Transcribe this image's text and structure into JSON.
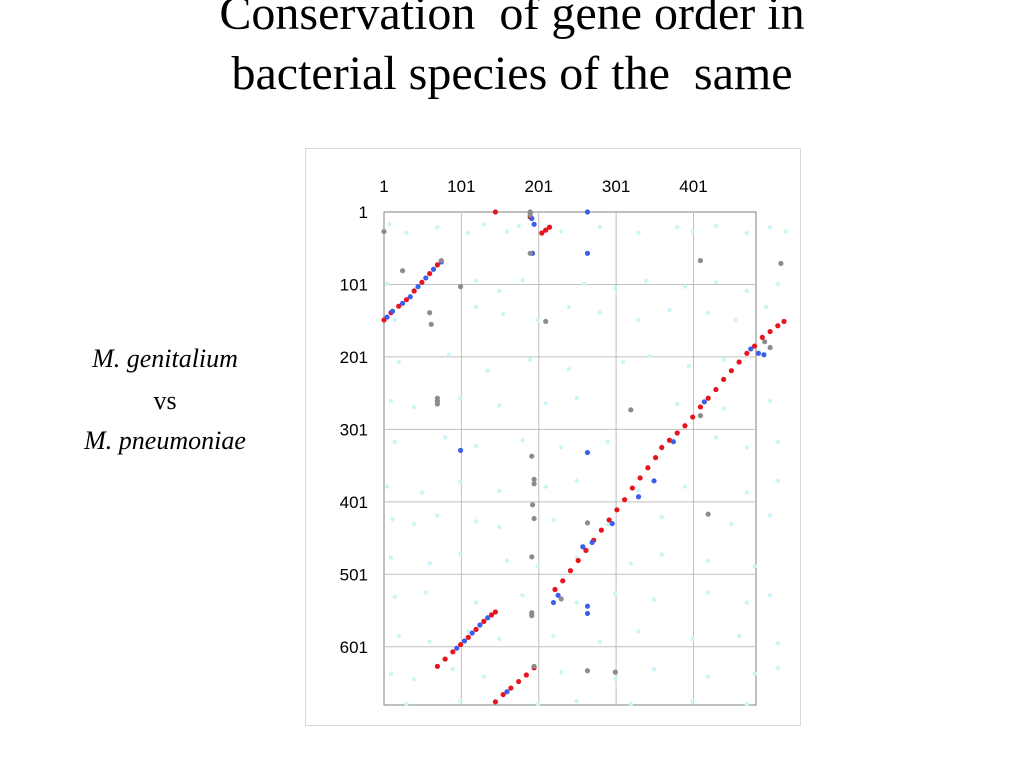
{
  "slide": {
    "title_line1": "Conservation  of gene order in",
    "title_line2": "bacterial species of the  same",
    "label_species1": "M. genitalium",
    "label_vs": "vs",
    "label_species2": "M. pneumoniae"
  },
  "chart_data": {
    "type": "scatter",
    "title": "",
    "xlabel": "",
    "ylabel": "",
    "x_axis_position": "top",
    "y_axis_direction": "down",
    "x_ticks": [
      1,
      101,
      201,
      301,
      401
    ],
    "x_tick_labels": [
      "1",
      "101",
      "201",
      "301",
      "401"
    ],
    "y_ticks": [
      1,
      101,
      201,
      301,
      401,
      501,
      601
    ],
    "y_tick_labels": [
      "1",
      "101",
      "201",
      "301",
      "401",
      "501",
      "601"
    ],
    "xlim": [
      1,
      480
    ],
    "ylim": [
      1,
      680
    ],
    "grid": true,
    "legend": "none",
    "colors": {
      "red": "#e8141c",
      "blue": "#3b5fe8",
      "gray": "#8c8c8c",
      "cyan": "#ccf5f8",
      "grid": "#bfbfbf"
    },
    "series": [
      {
        "color_key": "red",
        "points": [
          [
            1,
            150
          ],
          [
            10,
            140
          ],
          [
            20,
            131
          ],
          [
            30,
            122
          ],
          [
            40,
            110
          ],
          [
            50,
            98
          ],
          [
            60,
            86
          ],
          [
            70,
            74
          ],
          [
            145,
            677
          ],
          [
            155,
            667
          ],
          [
            165,
            658
          ],
          [
            175,
            649
          ],
          [
            185,
            640
          ],
          [
            195,
            630
          ],
          [
            205,
            30
          ],
          [
            210,
            26
          ],
          [
            215,
            22
          ],
          [
            222,
            522
          ],
          [
            232,
            510
          ],
          [
            242,
            496
          ],
          [
            252,
            482
          ],
          [
            262,
            468
          ],
          [
            272,
            454
          ],
          [
            282,
            440
          ],
          [
            292,
            426
          ],
          [
            302,
            412
          ],
          [
            312,
            398
          ],
          [
            322,
            382
          ],
          [
            332,
            368
          ],
          [
            342,
            354
          ],
          [
            352,
            340
          ],
          [
            360,
            326
          ],
          [
            370,
            316
          ],
          [
            380,
            306
          ],
          [
            390,
            296
          ],
          [
            400,
            284
          ],
          [
            410,
            270
          ],
          [
            420,
            258
          ],
          [
            430,
            246
          ],
          [
            440,
            232
          ],
          [
            450,
            220
          ],
          [
            460,
            208
          ],
          [
            470,
            196
          ],
          [
            480,
            186
          ],
          [
            490,
            174
          ],
          [
            500,
            166
          ],
          [
            510,
            158
          ],
          [
            518,
            152
          ],
          [
            70,
            628
          ],
          [
            80,
            618
          ],
          [
            90,
            608
          ],
          [
            100,
            598
          ],
          [
            110,
            588
          ],
          [
            120,
            577
          ],
          [
            130,
            566
          ],
          [
            140,
            557
          ],
          [
            145,
            553
          ],
          [
            145,
            1
          ],
          [
            190,
            8
          ]
        ]
      },
      {
        "color_key": "blue",
        "points": [
          [
            5,
            146
          ],
          [
            12,
            138
          ],
          [
            25,
            127
          ],
          [
            35,
            118
          ],
          [
            45,
            104
          ],
          [
            55,
            92
          ],
          [
            65,
            80
          ],
          [
            75,
            70
          ],
          [
            95,
            603
          ],
          [
            105,
            593
          ],
          [
            115,
            582
          ],
          [
            125,
            571
          ],
          [
            135,
            561
          ],
          [
            160,
            663
          ],
          [
            190,
            2
          ],
          [
            192,
            10
          ],
          [
            195,
            18
          ],
          [
            193,
            58
          ],
          [
            220,
            540
          ],
          [
            226,
            530
          ],
          [
            258,
            463
          ],
          [
            270,
            457
          ],
          [
            296,
            431
          ],
          [
            330,
            394
          ],
          [
            350,
            372
          ],
          [
            375,
            318
          ],
          [
            415,
            263
          ],
          [
            475,
            190
          ],
          [
            492,
            198
          ],
          [
            485,
            196
          ],
          [
            264,
            1
          ],
          [
            264,
            58
          ],
          [
            264,
            333
          ],
          [
            264,
            545
          ],
          [
            264,
            555
          ],
          [
            100,
            330
          ]
        ]
      },
      {
        "color_key": "gray",
        "points": [
          [
            1,
            28
          ],
          [
            25,
            82
          ],
          [
            75,
            68
          ],
          [
            60,
            140
          ],
          [
            62,
            156
          ],
          [
            70,
            258
          ],
          [
            70,
            262
          ],
          [
            70,
            266
          ],
          [
            100,
            104
          ],
          [
            190,
            1
          ],
          [
            190,
            5
          ],
          [
            190,
            58
          ],
          [
            192,
            338
          ],
          [
            195,
            370
          ],
          [
            195,
            376
          ],
          [
            193,
            405
          ],
          [
            195,
            424
          ],
          [
            192,
            477
          ],
          [
            192,
            554
          ],
          [
            192,
            558
          ],
          [
            195,
            628
          ],
          [
            210,
            152
          ],
          [
            230,
            535
          ],
          [
            264,
            430
          ],
          [
            264,
            634
          ],
          [
            300,
            636
          ],
          [
            320,
            274
          ],
          [
            410,
            68
          ],
          [
            410,
            282
          ],
          [
            420,
            418
          ],
          [
            493,
            180
          ],
          [
            500,
            188
          ],
          [
            514,
            72
          ]
        ]
      }
    ],
    "background_noise": {
      "color_key": "cyan",
      "points": [
        [
          8,
          18
        ],
        [
          30,
          30
        ],
        [
          70,
          22
        ],
        [
          110,
          30
        ],
        [
          130,
          18
        ],
        [
          160,
          28
        ],
        [
          175,
          20
        ],
        [
          230,
          28
        ],
        [
          280,
          22
        ],
        [
          330,
          30
        ],
        [
          380,
          22
        ],
        [
          400,
          28
        ],
        [
          430,
          20
        ],
        [
          470,
          30
        ],
        [
          500,
          22
        ],
        [
          520,
          28
        ],
        [
          5,
          100
        ],
        [
          40,
          108
        ],
        [
          120,
          96
        ],
        [
          150,
          110
        ],
        [
          180,
          95
        ],
        [
          260,
          100
        ],
        [
          300,
          106
        ],
        [
          340,
          96
        ],
        [
          390,
          104
        ],
        [
          430,
          98
        ],
        [
          470,
          110
        ],
        [
          510,
          100
        ],
        [
          15,
          150
        ],
        [
          120,
          132
        ],
        [
          155,
          142
        ],
        [
          200,
          150
        ],
        [
          240,
          132
        ],
        [
          280,
          140
        ],
        [
          330,
          150
        ],
        [
          370,
          136
        ],
        [
          420,
          140
        ],
        [
          455,
          150
        ],
        [
          495,
          132
        ],
        [
          20,
          208
        ],
        [
          85,
          198
        ],
        [
          135,
          220
        ],
        [
          190,
          205
        ],
        [
          240,
          218
        ],
        [
          310,
          208
        ],
        [
          345,
          200
        ],
        [
          395,
          214
        ],
        [
          440,
          205
        ],
        [
          10,
          262
        ],
        [
          40,
          270
        ],
        [
          100,
          258
        ],
        [
          150,
          268
        ],
        [
          210,
          265
        ],
        [
          250,
          258
        ],
        [
          380,
          266
        ],
        [
          440,
          272
        ],
        [
          500,
          262
        ],
        [
          15,
          318
        ],
        [
          80,
          312
        ],
        [
          120,
          324
        ],
        [
          180,
          316
        ],
        [
          230,
          326
        ],
        [
          290,
          318
        ],
        [
          430,
          312
        ],
        [
          470,
          326
        ],
        [
          510,
          318
        ],
        [
          5,
          380
        ],
        [
          50,
          388
        ],
        [
          100,
          374
        ],
        [
          150,
          386
        ],
        [
          210,
          380
        ],
        [
          250,
          372
        ],
        [
          330,
          386
        ],
        [
          390,
          380
        ],
        [
          470,
          388
        ],
        [
          510,
          372
        ],
        [
          12,
          425
        ],
        [
          40,
          432
        ],
        [
          70,
          420
        ],
        [
          120,
          428
        ],
        [
          150,
          436
        ],
        [
          220,
          426
        ],
        [
          290,
          432
        ],
        [
          360,
          422
        ],
        [
          450,
          432
        ],
        [
          500,
          420
        ],
        [
          10,
          478
        ],
        [
          60,
          486
        ],
        [
          100,
          472
        ],
        [
          160,
          482
        ],
        [
          200,
          490
        ],
        [
          250,
          478
        ],
        [
          320,
          486
        ],
        [
          360,
          474
        ],
        [
          420,
          482
        ],
        [
          480,
          490
        ],
        [
          15,
          532
        ],
        [
          55,
          526
        ],
        [
          120,
          540
        ],
        [
          180,
          530
        ],
        [
          250,
          540
        ],
        [
          300,
          528
        ],
        [
          350,
          536
        ],
        [
          420,
          526
        ],
        [
          470,
          540
        ],
        [
          500,
          530
        ],
        [
          20,
          586
        ],
        [
          60,
          594
        ],
        [
          110,
          580
        ],
        [
          150,
          590
        ],
        [
          220,
          586
        ],
        [
          280,
          594
        ],
        [
          330,
          580
        ],
        [
          400,
          590
        ],
        [
          460,
          586
        ],
        [
          510,
          596
        ],
        [
          10,
          638
        ],
        [
          40,
          646
        ],
        [
          90,
          632
        ],
        [
          130,
          642
        ],
        [
          230,
          636
        ],
        [
          300,
          646
        ],
        [
          350,
          632
        ],
        [
          420,
          642
        ],
        [
          480,
          638
        ],
        [
          510,
          630
        ],
        [
          30,
          680
        ],
        [
          100,
          676
        ],
        [
          200,
          680
        ],
        [
          250,
          676
        ],
        [
          320,
          680
        ],
        [
          400,
          676
        ],
        [
          470,
          680
        ]
      ]
    }
  }
}
